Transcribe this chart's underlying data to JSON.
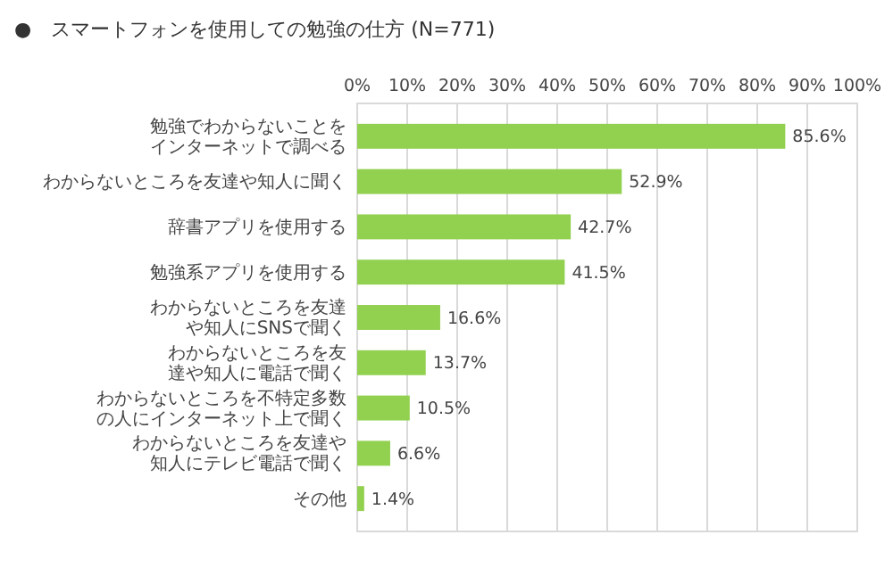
{
  "chart_data": {
    "type": "bar",
    "orientation": "horizontal",
    "title": "●　スマートフォンを使用しての勉強の仕方 (N=771)",
    "categories": [
      "勉強でわからないことをインターネットで調べる",
      "わからないところを友達や知人に聞く",
      "辞書アプリを使用する",
      "勉強系アプリを使用する",
      "わからないところを友達や知人にSNSで聞く",
      "わからないところを友達や知人に電話で聞く",
      "わからないところを不特定多数の人にインターネット上で聞く",
      "わからないところを友達や知人にテレビ電話で聞く",
      "その他"
    ],
    "values": [
      85.6,
      52.9,
      42.7,
      41.5,
      16.6,
      13.7,
      10.5,
      6.6,
      1.4
    ],
    "value_labels": [
      "85.6%",
      "52.9%",
      "42.7%",
      "41.5%",
      "16.6%",
      "13.7%",
      "10.5%",
      "6.6%",
      "1.4%"
    ],
    "color": "#92d050",
    "xlim": [
      0,
      100
    ],
    "xticks": [
      {
        "value": 0,
        "label": "0%"
      },
      {
        "value": 10,
        "label": "10%"
      },
      {
        "value": 20,
        "label": "20%"
      },
      {
        "value": 30,
        "label": "30%"
      },
      {
        "value": 40,
        "label": "40%"
      },
      {
        "value": 50,
        "label": "50%"
      },
      {
        "value": 60,
        "label": "60%"
      },
      {
        "value": 70,
        "label": "70%"
      },
      {
        "value": 80,
        "label": "80%"
      },
      {
        "value": 90,
        "label": "90%"
      },
      {
        "value": 100,
        "label": "100%"
      }
    ],
    "grid": "x"
  }
}
